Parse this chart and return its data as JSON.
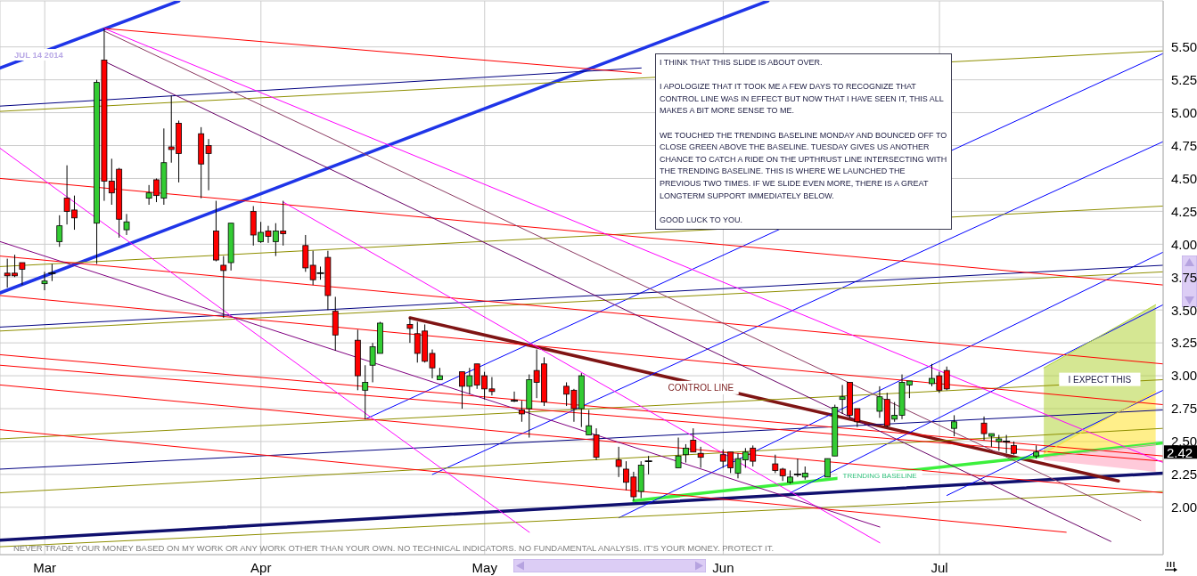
{
  "chart_data": {
    "type": "candlestick",
    "subtitle": "JUL 14 2014",
    "x": [
      "2014-02-26",
      "2014-02-27",
      "2014-02-28",
      "2014-03-03",
      "2014-03-04",
      "2014-03-05",
      "2014-03-06",
      "2014-03-07",
      "2014-03-10",
      "2014-03-11",
      "2014-03-12",
      "2014-03-13",
      "2014-03-14",
      "2014-03-17",
      "2014-03-18",
      "2014-03-19",
      "2014-03-20",
      "2014-03-21",
      "2014-03-24",
      "2014-03-25",
      "2014-03-26",
      "2014-03-27",
      "2014-03-28",
      "2014-03-31",
      "2014-04-01",
      "2014-04-02",
      "2014-04-03",
      "2014-04-04",
      "2014-04-07",
      "2014-04-08",
      "2014-04-09",
      "2014-04-10",
      "2014-04-11",
      "2014-04-14",
      "2014-04-15",
      "2014-04-16",
      "2014-04-17",
      "2014-04-21",
      "2014-04-22",
      "2014-04-23",
      "2014-04-24",
      "2014-04-25",
      "2014-04-28",
      "2014-04-29",
      "2014-04-30",
      "2014-05-01",
      "2014-05-02",
      "2014-05-05",
      "2014-05-06",
      "2014-05-07",
      "2014-05-08",
      "2014-05-09",
      "2014-05-12",
      "2014-05-13",
      "2014-05-14",
      "2014-05-15",
      "2014-05-16",
      "2014-05-19",
      "2014-05-20",
      "2014-05-21",
      "2014-05-22",
      "2014-05-23",
      "2014-05-27",
      "2014-05-28",
      "2014-05-29",
      "2014-05-30",
      "2014-06-02",
      "2014-06-03",
      "2014-06-04",
      "2014-06-05",
      "2014-06-06",
      "2014-06-09",
      "2014-06-10",
      "2014-06-11",
      "2014-06-12",
      "2014-06-13",
      "2014-06-16",
      "2014-06-17",
      "2014-06-18",
      "2014-06-19",
      "2014-06-20",
      "2014-06-23",
      "2014-06-24",
      "2014-06-25",
      "2014-06-26",
      "2014-06-27",
      "2014-06-30",
      "2014-07-01",
      "2014-07-02",
      "2014-07-03",
      "2014-07-07",
      "2014-07-08",
      "2014-07-09",
      "2014-07-10",
      "2014-07-11",
      "2014-07-14"
    ],
    "ohlc": [
      [
        3.78,
        3.89,
        3.67,
        3.76
      ],
      [
        3.78,
        3.92,
        3.75,
        3.76
      ],
      [
        3.86,
        3.86,
        3.69,
        3.81
      ],
      [
        3.7,
        3.79,
        3.65,
        3.72
      ],
      [
        3.78,
        3.85,
        3.72,
        3.78
      ],
      [
        4.02,
        4.22,
        3.98,
        4.14
      ],
      [
        4.35,
        4.6,
        4.15,
        4.25
      ],
      [
        4.26,
        4.37,
        4.11,
        4.2
      ],
      [
        4.16,
        5.25,
        3.85,
        5.23
      ],
      [
        5.4,
        5.64,
        4.33,
        4.48
      ],
      [
        4.48,
        4.65,
        4.3,
        4.39
      ],
      [
        4.57,
        4.58,
        4.05,
        4.19
      ],
      [
        4.11,
        4.23,
        4.07,
        4.17
      ],
      [
        4.35,
        4.45,
        4.3,
        4.39
      ],
      [
        4.49,
        4.5,
        4.32,
        4.37
      ],
      [
        4.35,
        4.88,
        4.3,
        4.62
      ],
      [
        4.74,
        5.13,
        4.62,
        4.72
      ],
      [
        4.92,
        4.94,
        4.47,
        4.69
      ],
      [
        4.84,
        4.89,
        4.35,
        4.61
      ],
      [
        4.75,
        4.8,
        4.41,
        4.69
      ],
      [
        4.1,
        4.33,
        3.87,
        3.88
      ],
      [
        3.84,
        3.91,
        3.44,
        3.8
      ],
      [
        3.86,
        4.16,
        3.8,
        4.16
      ],
      [
        4.25,
        4.29,
        3.99,
        4.07
      ],
      [
        4.02,
        4.17,
        4.01,
        4.09
      ],
      [
        4.1,
        4.14,
        4.01,
        4.06
      ],
      [
        4.02,
        4.16,
        3.91,
        4.1
      ],
      [
        4.1,
        4.33,
        3.99,
        4.08
      ],
      [
        3.99,
        4.07,
        3.79,
        3.82
      ],
      [
        3.84,
        3.95,
        3.69,
        3.73
      ],
      [
        3.78,
        3.83,
        3.73,
        3.78
      ],
      [
        3.9,
        3.95,
        3.5,
        3.61
      ],
      [
        3.49,
        3.6,
        3.19,
        3.31
      ],
      [
        3.27,
        3.35,
        2.89,
        3.0
      ],
      [
        2.89,
        3.08,
        2.67,
        2.95
      ],
      [
        3.08,
        3.25,
        2.95,
        3.22
      ],
      [
        3.17,
        3.41,
        3.17,
        3.4
      ],
      [
        3.39,
        3.44,
        3.25,
        3.36
      ],
      [
        3.32,
        3.41,
        3.1,
        3.17
      ],
      [
        3.34,
        3.39,
        3.1,
        3.11
      ],
      [
        3.17,
        3.2,
        2.98,
        3.06
      ],
      [
        2.97,
        3.06,
        2.97,
        3.0
      ],
      [
        3.03,
        3.03,
        2.75,
        2.92
      ],
      [
        2.92,
        3.06,
        2.86,
        3.0
      ],
      [
        3.09,
        3.09,
        2.9,
        2.93
      ],
      [
        3.0,
        3.03,
        2.82,
        2.9
      ],
      [
        2.9,
        2.99,
        2.85,
        2.88
      ],
      [
        2.81,
        2.88,
        2.8,
        2.81
      ],
      [
        2.74,
        2.81,
        2.65,
        2.71
      ],
      [
        2.75,
        3.01,
        2.53,
        2.97
      ],
      [
        3.04,
        3.2,
        2.83,
        2.95
      ],
      [
        3.09,
        3.14,
        2.77,
        2.8
      ],
      [
        2.92,
        2.95,
        2.77,
        2.86
      ],
      [
        2.89,
        2.9,
        2.65,
        2.75
      ],
      [
        2.75,
        3.02,
        2.61,
        3.0
      ],
      [
        2.55,
        2.74,
        2.55,
        2.62
      ],
      [
        2.55,
        2.6,
        2.36,
        2.38
      ],
      [
        2.36,
        2.46,
        2.23,
        2.31
      ],
      [
        2.29,
        2.35,
        2.13,
        2.19
      ],
      [
        2.23,
        2.27,
        2.05,
        2.08
      ],
      [
        2.12,
        2.35,
        2.07,
        2.32
      ],
      [
        2.35,
        2.39,
        2.25,
        2.35
      ],
      [
        2.3,
        2.53,
        2.3,
        2.39
      ],
      [
        2.4,
        2.48,
        2.34,
        2.45
      ],
      [
        2.51,
        2.6,
        2.42,
        2.42
      ],
      [
        2.41,
        2.46,
        2.3,
        2.38
      ],
      [
        2.4,
        2.44,
        2.3,
        2.35
      ],
      [
        2.42,
        2.42,
        2.26,
        2.3
      ],
      [
        2.26,
        2.41,
        2.22,
        2.37
      ],
      [
        2.36,
        2.45,
        2.3,
        2.42
      ],
      [
        2.45,
        2.47,
        2.31,
        2.35
      ],
      [
        2.33,
        2.4,
        2.26,
        2.28
      ],
      [
        2.29,
        2.3,
        2.2,
        2.24
      ],
      [
        2.19,
        2.28,
        2.18,
        2.23
      ],
      [
        2.25,
        2.37,
        2.23,
        2.25
      ],
      [
        2.23,
        2.31,
        2.21,
        2.26
      ],
      [
        2.23,
        2.37,
        2.23,
        2.37
      ],
      [
        2.39,
        2.78,
        2.39,
        2.76
      ],
      [
        2.82,
        2.93,
        2.71,
        2.84
      ],
      [
        2.95,
        2.95,
        2.68,
        2.7
      ],
      [
        2.75,
        2.75,
        2.61,
        2.65
      ],
      [
        2.73,
        2.92,
        2.68,
        2.84
      ],
      [
        2.82,
        2.87,
        2.61,
        2.62
      ],
      [
        2.67,
        2.8,
        2.65,
        2.7
      ],
      [
        2.7,
        3.01,
        2.67,
        2.95
      ],
      [
        2.93,
        2.96,
        2.83,
        2.96
      ],
      [
        2.94,
        3.09,
        2.92,
        2.98
      ],
      [
        3.0,
        3.03,
        2.87,
        2.89
      ],
      [
        3.04,
        3.07,
        2.89,
        2.9
      ],
      [
        2.6,
        2.7,
        2.54,
        2.65
      ],
      [
        2.64,
        2.69,
        2.51,
        2.56
      ],
      [
        2.54,
        2.56,
        2.46,
        2.56
      ],
      [
        2.5,
        2.55,
        2.43,
        2.52
      ],
      [
        2.5,
        2.55,
        2.41,
        2.5
      ],
      [
        2.47,
        2.5,
        2.4,
        2.41
      ],
      [
        2.39,
        2.47,
        2.37,
        2.42
      ]
    ],
    "colors": [
      "#ff0000",
      "#ff0000",
      "#ff0000",
      "#33cc33",
      "#000000",
      "#33cc33",
      "#ff0000",
      "#ff0000",
      "#33cc33",
      "#ff0000",
      "#ff0000",
      "#ff0000",
      "#33cc33",
      "#33cc33",
      "#ff0000",
      "#33cc33",
      "#ff0000",
      "#ff0000",
      "#ff0000",
      "#ff0000",
      "#ff0000",
      "#ff0000",
      "#33cc33",
      "#ff0000",
      "#33cc33",
      "#ff0000",
      "#33cc33",
      "#ff0000",
      "#ff0000",
      "#ff0000",
      "#000000",
      "#ff0000",
      "#ff0000",
      "#ff0000",
      "#33cc33",
      "#33cc33",
      "#33cc33",
      "#ff0000",
      "#ff0000",
      "#ff0000",
      "#ff0000",
      "#33cc33",
      "#ff0000",
      "#33cc33",
      "#ff0000",
      "#ff0000",
      "#ff0000",
      "#000000",
      "#ff0000",
      "#33cc33",
      "#ff0000",
      "#ff0000",
      "#ff0000",
      "#ff0000",
      "#33cc33",
      "#33cc33",
      "#ff0000",
      "#ff0000",
      "#ff0000",
      "#ff0000",
      "#33cc33",
      "#000000",
      "#33cc33",
      "#33cc33",
      "#ff0000",
      "#ff0000",
      "#ff0000",
      "#ff0000",
      "#33cc33",
      "#33cc33",
      "#ff0000",
      "#ff0000",
      "#ff0000",
      "#33cc33",
      "#000000",
      "#33cc33",
      "#33cc33",
      "#33cc33",
      "#33cc33",
      "#ff0000",
      "#ff0000",
      "#33cc33",
      "#ff0000",
      "#33cc33",
      "#33cc33",
      "#33cc33",
      "#33cc33",
      "#ff0000",
      "#ff0000",
      "#33cc33",
      "#ff0000",
      "#33cc33",
      "#33cc33",
      "#000000",
      "#ff0000",
      "#33cc33"
    ],
    "series": [
      {
        "type": "line",
        "color": "#1f35e8",
        "x": [
          "2014-02-25",
          "2014-06-08"
        ],
        "values": [
          3.63,
          5.85
        ]
      },
      {
        "type": "line",
        "color": "#1f35e8",
        "x": [
          "2014-02-25",
          "2014-03-21"
        ],
        "values": [
          5.34,
          5.85
        ]
      },
      {
        "type": "line",
        "color": "#10106e",
        "x": [
          "2014-02-25",
          "2014-07-31"
        ],
        "values": [
          1.75,
          2.26
        ]
      },
      {
        "type": "line",
        "color": "#7f1414",
        "x": [
          "2014-04-21",
          "2014-07-25"
        ],
        "values": [
          3.44,
          2.2
        ]
      },
      {
        "type": "line",
        "color": "#3cf03c",
        "x": [
          "2014-05-21",
          "2014-07-31"
        ],
        "values": [
          2.05,
          2.49
        ]
      },
      {
        "type": "line",
        "color": "#0000ff",
        "x": [
          "2014-04-15",
          "2014-07-31"
        ],
        "values": [
          2.67,
          5.45
        ]
      },
      {
        "type": "line",
        "color": "#0000ff",
        "x": [
          "2014-04-24",
          "2014-07-31"
        ],
        "values": [
          2.25,
          4.78
        ]
      },
      {
        "type": "line",
        "color": "#0000ff",
        "x": [
          "2014-05-19",
          "2014-07-31"
        ],
        "values": [
          1.92,
          3.94
        ]
      },
      {
        "type": "line",
        "color": "#0000ff",
        "x": [
          "2014-06-11",
          "2014-07-31"
        ],
        "values": [
          2.11,
          3.54
        ]
      },
      {
        "type": "line",
        "color": "#0000ff",
        "x": [
          "2014-07-02",
          "2014-07-31"
        ],
        "values": [
          2.09,
          2.89
        ]
      },
      {
        "type": "line",
        "color": "#000080",
        "x": [
          "2014-02-25",
          "2014-05-22"
        ],
        "values": [
          5.05,
          5.34
        ]
      },
      {
        "type": "line",
        "color": "#000080",
        "x": [
          "2014-02-25",
          "2014-07-31"
        ],
        "values": [
          3.37,
          3.84
        ]
      },
      {
        "type": "line",
        "color": "#000080",
        "x": [
          "2014-02-25",
          "2014-07-31"
        ],
        "values": [
          2.29,
          2.74
        ]
      },
      {
        "type": "line",
        "color": "#8f8f00",
        "x": [
          "2014-02-25",
          "2014-07-31"
        ],
        "values": [
          5.01,
          5.47
        ]
      },
      {
        "type": "line",
        "color": "#8f8f00",
        "x": [
          "2014-02-25",
          "2014-07-31"
        ],
        "values": [
          3.83,
          4.29
        ]
      },
      {
        "type": "line",
        "color": "#8f8f00",
        "x": [
          "2014-02-25",
          "2014-07-31"
        ],
        "values": [
          3.34,
          3.79
        ]
      },
      {
        "type": "line",
        "color": "#8f8f00",
        "x": [
          "2014-02-25",
          "2014-07-31"
        ],
        "values": [
          2.52,
          2.97
        ]
      },
      {
        "type": "line",
        "color": "#8f8f00",
        "x": [
          "2014-02-25",
          "2014-07-31"
        ],
        "values": [
          2.11,
          2.6
        ]
      },
      {
        "type": "line",
        "color": "#8f8f00",
        "x": [
          "2014-02-25",
          "2014-07-31"
        ],
        "values": [
          1.7,
          2.12
        ]
      },
      {
        "type": "line",
        "color": "#ff0000",
        "x": [
          "2014-03-11",
          "2014-05-22"
        ],
        "values": [
          5.64,
          5.3
        ]
      },
      {
        "type": "line",
        "color": "#ff0000",
        "x": [
          "2014-02-25",
          "2014-07-31"
        ],
        "values": [
          4.5,
          3.69
        ]
      },
      {
        "type": "line",
        "color": "#ff0000",
        "x": [
          "2014-02-25",
          "2014-07-31"
        ],
        "values": [
          3.91,
          3.09
        ]
      },
      {
        "type": "line",
        "color": "#ff0000",
        "x": [
          "2014-02-25",
          "2014-07-31"
        ],
        "values": [
          3.61,
          2.78
        ]
      },
      {
        "type": "line",
        "color": "#ff0000",
        "x": [
          "2014-02-25",
          "2014-07-31"
        ],
        "values": [
          3.16,
          2.39
        ]
      },
      {
        "type": "line",
        "color": "#ff0000",
        "x": [
          "2014-02-25",
          "2014-07-31"
        ],
        "values": [
          3.08,
          2.35
        ]
      },
      {
        "type": "line",
        "color": "#ff0000",
        "x": [
          "2014-02-25",
          "2014-07-31"
        ],
        "values": [
          2.93,
          2.11
        ]
      },
      {
        "type": "line",
        "color": "#ff0000",
        "x": [
          "2014-02-25",
          "2014-07-18"
        ],
        "values": [
          2.59,
          1.81
        ]
      },
      {
        "type": "line",
        "color": "#ff00ff",
        "x": [
          "2014-03-11",
          "2014-07-31"
        ],
        "values": [
          5.64,
          2.34
        ]
      },
      {
        "type": "line",
        "color": "#ff00ff",
        "x": [
          "2014-02-25",
          "2014-05-07"
        ],
        "values": [
          4.73,
          1.81
        ]
      },
      {
        "type": "line",
        "color": "#ff00ff",
        "x": [
          "2014-04-04",
          "2014-06-23"
        ],
        "values": [
          4.32,
          1.73
        ]
      },
      {
        "type": "line",
        "color": "#8b3a62",
        "x": [
          "2014-03-11",
          "2014-07-28"
        ],
        "values": [
          5.62,
          1.9
        ]
      },
      {
        "type": "line",
        "color": "#660066",
        "x": [
          "2014-03-11",
          "2014-07-24"
        ],
        "values": [
          5.39,
          1.74
        ]
      },
      {
        "type": "line",
        "color": "#800080",
        "x": [
          "2014-02-25",
          "2014-06-23"
        ],
        "values": [
          4.02,
          1.85
        ]
      },
      {
        "type": "line",
        "name": "I EXPECT THIS",
        "color": "#b2d43a",
        "x": [
          "2014-07-15",
          "2014-07-30"
        ],
        "values": [
          3.06,
          3.54
        ],
        "lower": [
          2.41,
          2.88
        ],
        "upper": [
          3.06,
          3.54
        ]
      },
      {
        "type": "line",
        "color": "#ffe22a",
        "x": [
          "2014-07-15",
          "2014-07-30"
        ],
        "values": [
          2.41,
          2.88
        ],
        "lower": [
          2.38,
          2.48
        ],
        "upper": [
          2.41,
          2.88
        ]
      },
      {
        "type": "line",
        "color": "#ff9fbc",
        "x": [
          "2014-07-15",
          "2014-07-30"
        ],
        "values": [
          2.38,
          2.48
        ],
        "lower": [
          2.36,
          2.27
        ],
        "upper": [
          2.38,
          2.48
        ]
      }
    ],
    "xlim": [
      "2014-02-25",
      "2014-07-31"
    ],
    "xticks": [
      {
        "value": "2014-03-03",
        "label": "Mar"
      },
      {
        "value": "2014-04-01",
        "label": "Apr"
      },
      {
        "value": "2014-05-01",
        "label": "May"
      },
      {
        "value": "2014-06-02",
        "label": "Jun"
      },
      {
        "value": "2014-07-01",
        "label": "Jul"
      }
    ],
    "ylim": [
      1.64,
      5.85
    ],
    "yticks": [
      {
        "value": 2,
        "label": "2.00"
      },
      {
        "value": 2.25,
        "label": "2.25"
      },
      {
        "value": 2.5,
        "label": "2.50"
      },
      {
        "value": 2.75,
        "label": "2.75"
      },
      {
        "value": 3,
        "label": "3.00"
      },
      {
        "value": 3.25,
        "label": "3.25"
      },
      {
        "value": 3.5,
        "label": "3.50"
      },
      {
        "value": 3.75,
        "label": "3.75"
      },
      {
        "value": 4,
        "label": "4.00"
      },
      {
        "value": 4.25,
        "label": "4.25"
      },
      {
        "value": 4.5,
        "label": "4.50"
      },
      {
        "value": 4.75,
        "label": "4.75"
      },
      {
        "value": 5,
        "label": "5.00"
      },
      {
        "value": 5.25,
        "label": "5.25"
      },
      {
        "value": 5.5,
        "label": "5.50"
      }
    ],
    "grid": true,
    "annotations": [
      "I THINK THAT THIS SLIDE IS ABOUT OVER.\n\nI APOLOGIZE THAT IT TOOK ME A FEW DAYS TO RECOGNIZE THAT CONTROL LINE WAS IN EFFECT BUT NOW THAT I HAVE SEEN IT, THIS ALL MAKES A BIT MORE SENSE TO ME.\n\nWE TOUCHED THE TRENDING BASELINE MONDAY AND BOUNCED OFF TO CLOSE GREEN ABOVE THE BASELINE. TUESDAY GIVES US ANOTHER CHANCE TO CATCH A RIDE ON THE UPTHRUST LINE INTERSECTING WITH THE TRENDING BASELINE. THIS IS WHERE WE LAUNCHED THE PREVIOUS TWO TIMES. IF WE SLIDE EVEN MORE, THERE IS A GREAT LONGTERM SUPPORT IMMEDIATELY BELOW.\n\nGOOD LUCK TO YOU.",
      "NEVER TRADE YOUR MONEY BASED ON MY WORK OR ANY WORK OTHER THAN YOUR OWN. NO TECHNICAL INDICATORS. NO FUNDAMENTAL ANALYSIS. IT'S YOUR MONEY. PROTECT IT.",
      {
        "text": "CONTROL LINE",
        "x": "2014-05-30",
        "y": 2.91
      },
      {
        "text": "TRENDING BASELINE",
        "x": "2014-06-23",
        "y": 2.24
      },
      {
        "text": "2.42",
        "y": 2.42
      }
    ]
  }
}
